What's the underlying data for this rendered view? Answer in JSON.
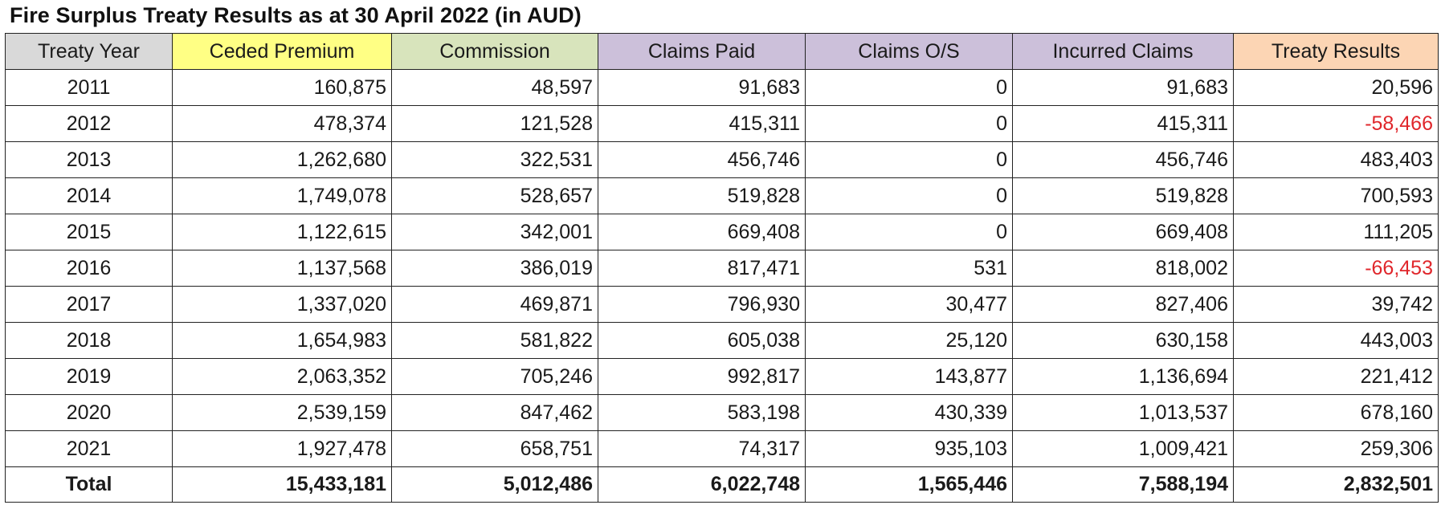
{
  "title": "Fire Surplus Treaty Results as at 30 April 2022 (in AUD)",
  "colors": {
    "year_header": "#d9d9d9",
    "premium_header": "#ffff84",
    "commission_header": "#d8e4bc",
    "claims_header": "#ccc0da",
    "result_header": "#fcd5b4",
    "negative_text": "#e0262b"
  },
  "columns": [
    {
      "label": "Treaty Year",
      "bg": "#d9d9d9"
    },
    {
      "label": "Ceded Premium",
      "bg": "#ffff84"
    },
    {
      "label": "Commission",
      "bg": "#d8e4bc"
    },
    {
      "label": "Claims Paid",
      "bg": "#ccc0da"
    },
    {
      "label": "Claims O/S",
      "bg": "#ccc0da"
    },
    {
      "label": "Incurred Claims",
      "bg": "#ccc0da"
    },
    {
      "label": "Treaty Results",
      "bg": "#fcd5b4"
    }
  ],
  "rows": [
    [
      "2011",
      "160,875",
      "48,597",
      "91,683",
      "0",
      "91,683",
      "20,596"
    ],
    [
      "2012",
      "478,374",
      "121,528",
      "415,311",
      "0",
      "415,311",
      "-58,466"
    ],
    [
      "2013",
      "1,262,680",
      "322,531",
      "456,746",
      "0",
      "456,746",
      "483,403"
    ],
    [
      "2014",
      "1,749,078",
      "528,657",
      "519,828",
      "0",
      "519,828",
      "700,593"
    ],
    [
      "2015",
      "1,122,615",
      "342,001",
      "669,408",
      "0",
      "669,408",
      "111,205"
    ],
    [
      "2016",
      "1,137,568",
      "386,019",
      "817,471",
      "531",
      "818,002",
      "-66,453"
    ],
    [
      "2017",
      "1,337,020",
      "469,871",
      "796,930",
      "30,477",
      "827,406",
      "39,742"
    ],
    [
      "2018",
      "1,654,983",
      "581,822",
      "605,038",
      "25,120",
      "630,158",
      "443,003"
    ],
    [
      "2019",
      "2,063,352",
      "705,246",
      "992,817",
      "143,877",
      "1,136,694",
      "221,412"
    ],
    [
      "2020",
      "2,539,159",
      "847,462",
      "583,198",
      "430,339",
      "1,013,537",
      "678,160"
    ],
    [
      "2021",
      "1,927,478",
      "658,751",
      "74,317",
      "935,103",
      "1,009,421",
      "259,306"
    ]
  ],
  "total": [
    "Total",
    "15,433,181",
    "5,012,486",
    "6,022,748",
    "1,565,446",
    "7,588,194",
    "2,832,501"
  ]
}
